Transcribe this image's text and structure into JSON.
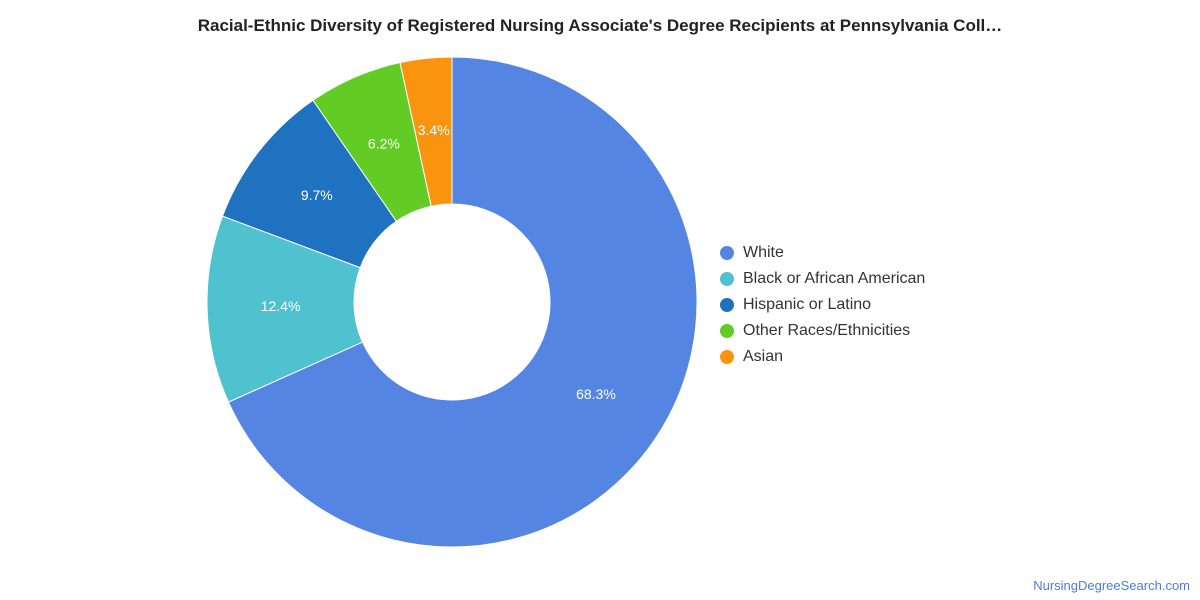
{
  "title": "Racial-Ethnic Diversity of Registered Nursing Associate's Degree Recipients at Pennsylvania Coll…",
  "chart_data": {
    "type": "pie",
    "variant": "donut",
    "title": "Racial-Ethnic Diversity of Registered Nursing Associate's Degree Recipients at Pennsylvania Coll…",
    "unit": "%",
    "legend_position": "right",
    "slices": [
      {
        "label": "White",
        "value": 68.3,
        "display": "68.3%",
        "color": "#5585e3"
      },
      {
        "label": "Black or African American",
        "value": 12.4,
        "display": "12.4%",
        "color": "#50c1cf"
      },
      {
        "label": "Hispanic or Latino",
        "value": 9.7,
        "display": "9.7%",
        "color": "#1f72bf"
      },
      {
        "label": "Other Races/Ethnicities",
        "value": 6.2,
        "display": "6.2%",
        "color": "#62cc25"
      },
      {
        "label": "Asian",
        "value": 3.4,
        "display": "3.4%",
        "color": "#fa940e"
      }
    ]
  },
  "source": "NursingDegreeSearch.com"
}
